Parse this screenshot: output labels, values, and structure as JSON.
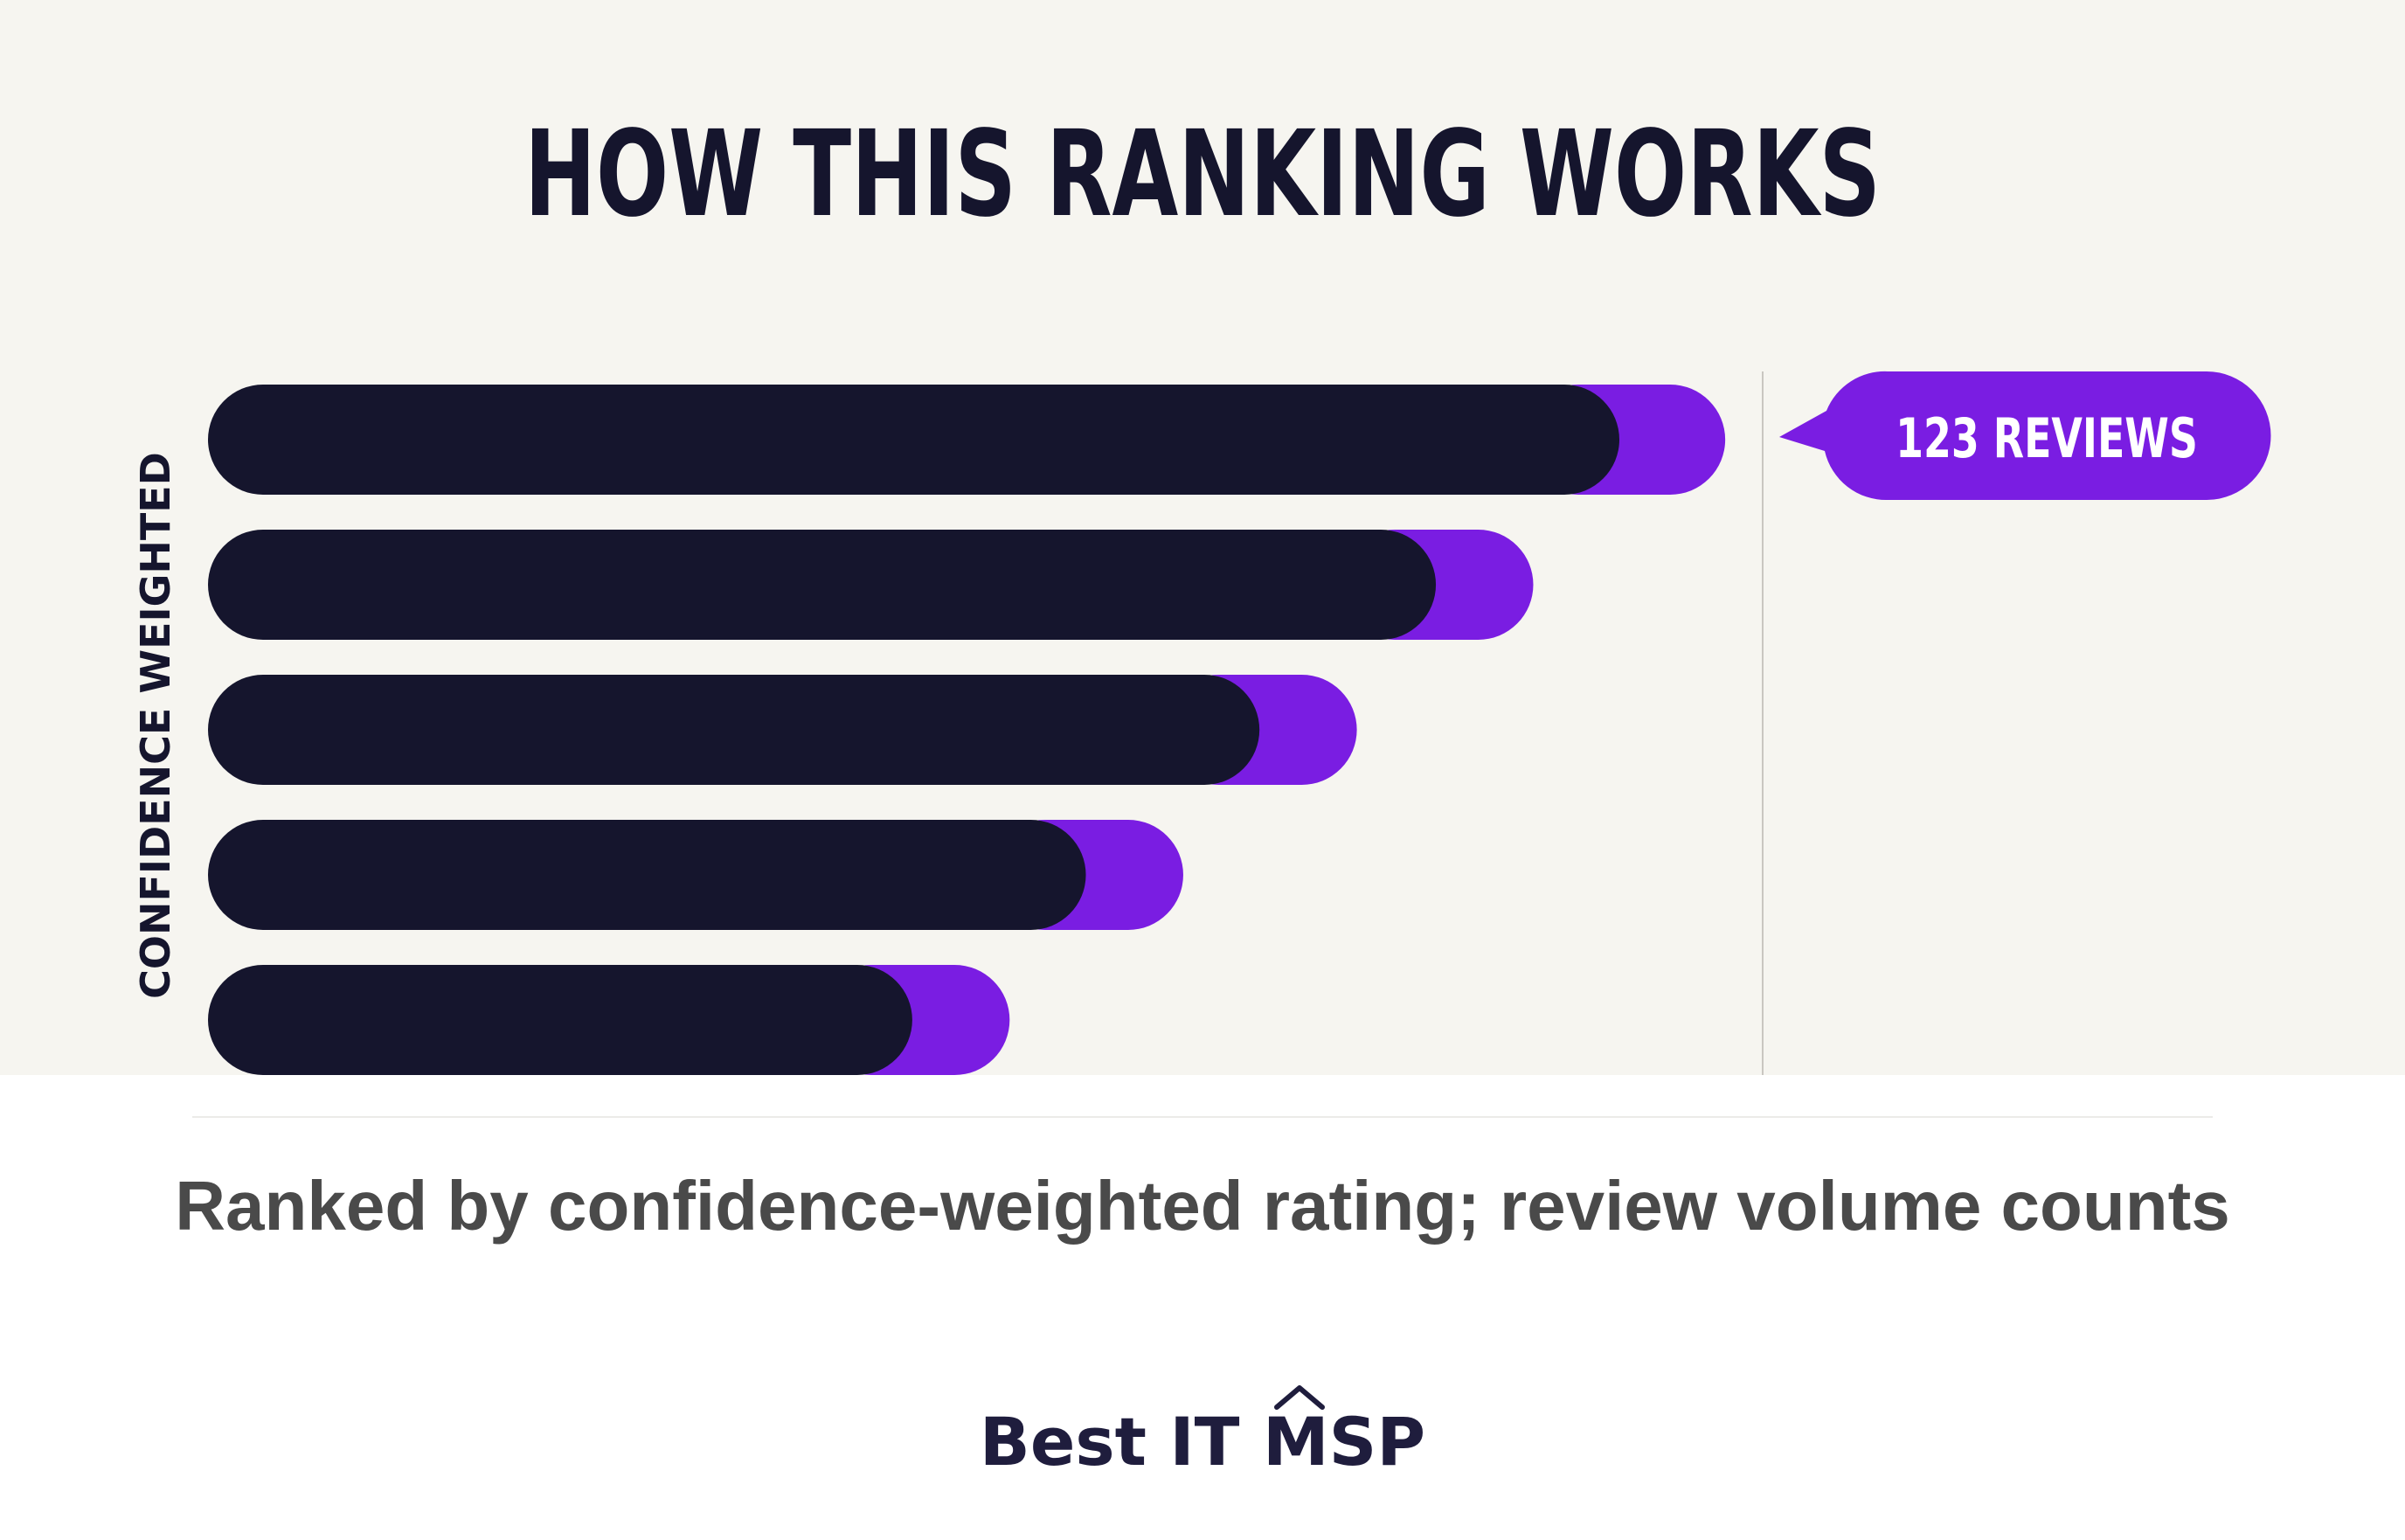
{
  "title": "HOW THIS RANKING WORKS",
  "caption": "Ranked by confidence-weighted rating; review volume counts",
  "brand": {
    "part1": "Best IT",
    "part2": "MSP"
  },
  "colors": {
    "background": "#f6f5f0",
    "bar_dark": "#15152d",
    "accent_purple": "#7a1de2",
    "caption_text": "#4a4a4a"
  },
  "chart_data": {
    "type": "bar",
    "orientation": "horizontal",
    "title": "HOW THIS RANKING WORKS",
    "ylabel": "CONFIDENCE WEIGHTED",
    "xlabel": "",
    "grid": false,
    "legend": "none",
    "bars": [
      {
        "rank": 1,
        "base": 1.0,
        "bonus": 0.075
      },
      {
        "rank": 2,
        "base": 0.87,
        "bonus": 0.069
      },
      {
        "rank": 3,
        "base": 0.745,
        "bonus": 0.069
      },
      {
        "rank": 4,
        "base": 0.622,
        "bonus": 0.069
      },
      {
        "rank": 5,
        "base": 0.499,
        "bonus": 0.069
      }
    ],
    "annotation": {
      "text": "123 REVIEWS",
      "target_rank": 1
    }
  }
}
